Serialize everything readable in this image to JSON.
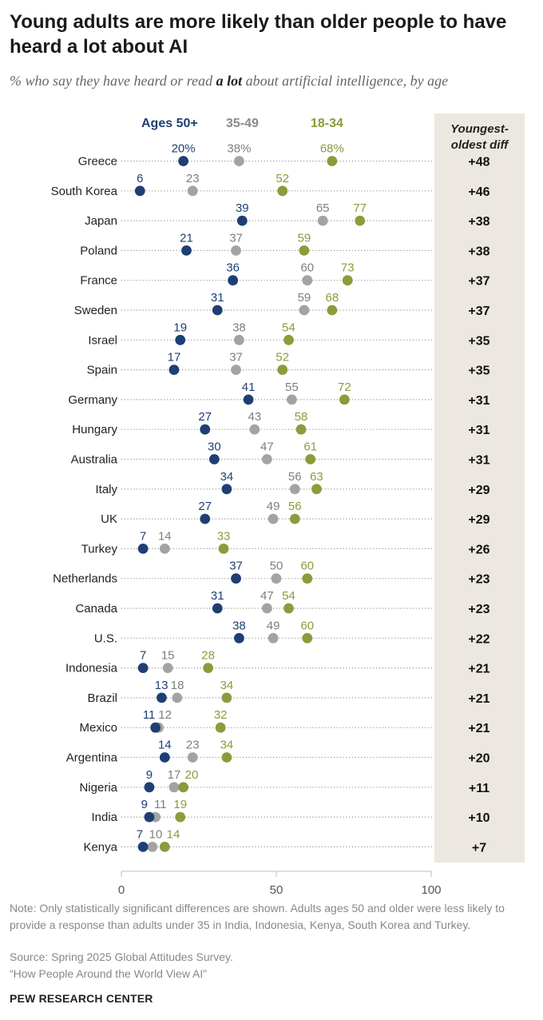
{
  "title": "Young adults are more likely than older people to have heard a lot about AI",
  "subtitle_pre": "% who say they have heard or read ",
  "subtitle_bold": "a lot",
  "subtitle_post": " about artificial intelligence, by age",
  "colors": {
    "old": "#1f3f74",
    "mid": "#a3a3a3",
    "young": "#8f9a3a",
    "diff_bg": "#ece8e1"
  },
  "chart_data": {
    "type": "scatter",
    "legend": [
      {
        "key": "old",
        "label": "Ages 50+"
      },
      {
        "key": "mid",
        "label": "35-49"
      },
      {
        "key": "young",
        "label": "18-34"
      }
    ],
    "diff_header": "Youngest-oldest diff",
    "xlim": [
      0,
      100
    ],
    "xticks": [
      "0",
      "50",
      "100"
    ],
    "rows": [
      {
        "country": "Greece",
        "old": 20,
        "mid": 38,
        "young": 68,
        "old_label": "20%",
        "mid_label": "38%",
        "young_label": "68%",
        "diff": "+48"
      },
      {
        "country": "South Korea",
        "old": 6,
        "mid": 23,
        "young": 52,
        "old_label": "6",
        "mid_label": "23",
        "young_label": "52",
        "diff": "+46"
      },
      {
        "country": "Japan",
        "old": 39,
        "mid": 65,
        "young": 77,
        "old_label": "39",
        "mid_label": "65",
        "young_label": "77",
        "diff": "+38"
      },
      {
        "country": "Poland",
        "old": 21,
        "mid": 37,
        "young": 59,
        "old_label": "21",
        "mid_label": "37",
        "young_label": "59",
        "diff": "+38"
      },
      {
        "country": "France",
        "old": 36,
        "mid": 60,
        "young": 73,
        "old_label": "36",
        "mid_label": "60",
        "young_label": "73",
        "diff": "+37"
      },
      {
        "country": "Sweden",
        "old": 31,
        "mid": 59,
        "young": 68,
        "old_label": "31",
        "mid_label": "59",
        "young_label": "68",
        "diff": "+37"
      },
      {
        "country": "Israel",
        "old": 19,
        "mid": 38,
        "young": 54,
        "old_label": "19",
        "mid_label": "38",
        "young_label": "54",
        "diff": "+35"
      },
      {
        "country": "Spain",
        "old": 17,
        "mid": 37,
        "young": 52,
        "old_label": "17",
        "mid_label": "37",
        "young_label": "52",
        "diff": "+35"
      },
      {
        "country": "Germany",
        "old": 41,
        "mid": 55,
        "young": 72,
        "old_label": "41",
        "mid_label": "55",
        "young_label": "72",
        "diff": "+31"
      },
      {
        "country": "Hungary",
        "old": 27,
        "mid": 43,
        "young": 58,
        "old_label": "27",
        "mid_label": "43",
        "young_label": "58",
        "diff": "+31"
      },
      {
        "country": "Australia",
        "old": 30,
        "mid": 47,
        "young": 61,
        "old_label": "30",
        "mid_label": "47",
        "young_label": "61",
        "diff": "+31"
      },
      {
        "country": "Italy",
        "old": 34,
        "mid": 56,
        "young": 63,
        "old_label": "34",
        "mid_label": "56",
        "young_label": "63",
        "diff": "+29"
      },
      {
        "country": "UK",
        "old": 27,
        "mid": 49,
        "young": 56,
        "old_label": "27",
        "mid_label": "49",
        "young_label": "56",
        "diff": "+29"
      },
      {
        "country": "Turkey",
        "old": 7,
        "mid": 14,
        "young": 33,
        "old_label": "7",
        "mid_label": "14",
        "young_label": "33",
        "diff": "+26"
      },
      {
        "country": "Netherlands",
        "old": 37,
        "mid": 50,
        "young": 60,
        "old_label": "37",
        "mid_label": "50",
        "young_label": "60",
        "diff": "+23"
      },
      {
        "country": "Canada",
        "old": 31,
        "mid": 47,
        "young": 54,
        "old_label": "31",
        "mid_label": "47",
        "young_label": "54",
        "diff": "+23"
      },
      {
        "country": "U.S.",
        "old": 38,
        "mid": 49,
        "young": 60,
        "old_label": "38",
        "mid_label": "49",
        "young_label": "60",
        "diff": "+22"
      },
      {
        "country": "Indonesia",
        "old": 7,
        "mid": 15,
        "young": 28,
        "old_label": "7",
        "mid_label": "15",
        "young_label": "28",
        "diff": "+21"
      },
      {
        "country": "Brazil",
        "old": 13,
        "mid": 18,
        "young": 34,
        "old_label": "13",
        "mid_label": "18",
        "young_label": "34",
        "diff": "+21"
      },
      {
        "country": "Mexico",
        "old": 11,
        "mid": 12,
        "young": 32,
        "old_label": "11",
        "mid_label": "12",
        "young_label": "32",
        "diff": "+21"
      },
      {
        "country": "Argentina",
        "old": 14,
        "mid": 23,
        "young": 34,
        "old_label": "14",
        "mid_label": "23",
        "young_label": "34",
        "diff": "+20"
      },
      {
        "country": "Nigeria",
        "old": 9,
        "mid": 17,
        "young": 20,
        "old_label": "9",
        "mid_label": "17",
        "young_label": "20",
        "diff": "+11"
      },
      {
        "country": "India",
        "old": 9,
        "mid": 11,
        "young": 19,
        "old_label": "9",
        "mid_label": "11",
        "young_label": "19",
        "diff": "+10"
      },
      {
        "country": "Kenya",
        "old": 7,
        "mid": 10,
        "young": 14,
        "old_label": "7",
        "mid_label": "10",
        "young_label": "14",
        "diff": "+7"
      }
    ]
  },
  "note": "Note: Only statistically significant differences are shown. Adults ages 50 and older were less likely to provide a response than adults under 35 in India, Indonesia, Kenya, South Korea and Turkey.",
  "source": "Source: Spring 2025 Global Attitudes Survey.",
  "report": "“How People Around the World View AI”",
  "brand": "PEW RESEARCH CENTER"
}
